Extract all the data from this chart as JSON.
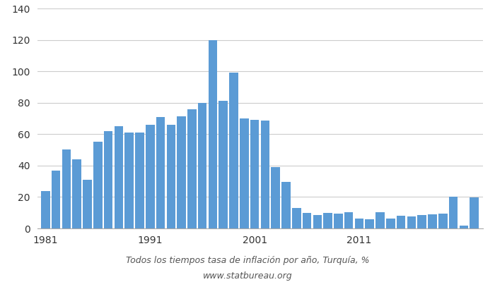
{
  "years": [
    1981,
    1982,
    1983,
    1984,
    1985,
    1986,
    1987,
    1988,
    1989,
    1990,
    1991,
    1992,
    1993,
    1994,
    1995,
    1996,
    1997,
    1998,
    1999,
    2000,
    2001,
    2002,
    2003,
    2004,
    2005,
    2006,
    2007,
    2008,
    2009,
    2010,
    2011,
    2012,
    2013,
    2014,
    2015,
    2016,
    2017,
    2018,
    2019,
    2020,
    2021,
    2022
  ],
  "values": [
    24.0,
    37.0,
    50.3,
    44.0,
    31.0,
    55.0,
    62.0,
    65.0,
    61.0,
    61.0,
    66.0,
    71.0,
    66.0,
    71.5,
    76.0,
    80.0,
    120.0,
    81.0,
    99.0,
    70.0,
    69.0,
    68.5,
    39.0,
    29.5,
    13.0,
    10.0,
    8.5,
    10.0,
    9.5,
    10.5,
    6.5,
    6.0,
    10.5,
    6.5,
    8.0,
    7.5,
    8.5,
    9.0,
    9.5,
    20.0,
    2.0,
    19.6
  ],
  "bar_color": "#5B9BD5",
  "title": "Todos los tiempos tasa de inflación por año, Turquía, %",
  "subtitle": "www.statbureau.org",
  "ylim": [
    0,
    140
  ],
  "yticks": [
    0,
    20,
    40,
    60,
    80,
    100,
    120,
    140
  ],
  "xtick_labels": [
    "1981",
    "1991",
    "2001",
    "2011"
  ],
  "xtick_positions": [
    0,
    10,
    20,
    30
  ],
  "background_color": "#ffffff",
  "grid_color": "#cccccc",
  "title_fontsize": 9.0,
  "subtitle_fontsize": 9.0,
  "title_color": "#555555",
  "bar_width": 0.85
}
